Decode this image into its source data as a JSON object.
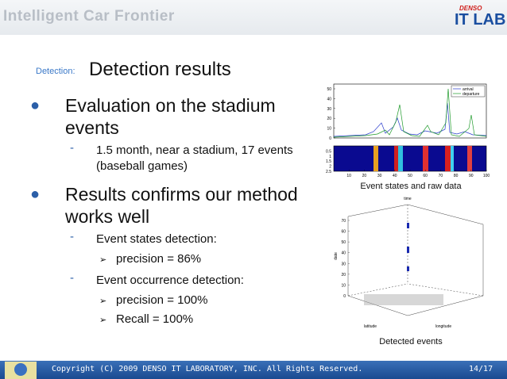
{
  "header": {
    "title": "Intelligent Car Frontier",
    "logo_brand": "DENSO",
    "logo_text": "IT LAB"
  },
  "slide": {
    "label": "Detection:",
    "title": "Detection results",
    "bullets": [
      {
        "text": "Evaluation on the stadium events",
        "sub": [
          {
            "text": "1.5 month, near a stadium, 17 events (baseball games)",
            "items": []
          }
        ]
      },
      {
        "text": "Results confirms our method works well",
        "sub": [
          {
            "text": "Event states detection:",
            "items": [
              "precision = 86%"
            ]
          },
          {
            "text": "Event occurrence detection:",
            "items": [
              "precision = 100%",
              "Recall = 100%"
            ]
          }
        ]
      }
    ]
  },
  "figures": [
    {
      "caption": "Event states and raw data",
      "legend": [
        "arrival",
        "departure"
      ],
      "yticks": [
        50,
        40,
        30,
        20,
        10,
        0
      ],
      "xticks": [
        10,
        20,
        30,
        40,
        50,
        60,
        70,
        80,
        90,
        100
      ],
      "y2ticks": [
        0.5,
        1,
        1.5,
        2,
        2.5
      ]
    },
    {
      "caption": "Detected events",
      "title": "time",
      "zlabel": "date",
      "xlabel": "latitude",
      "ylabel": "longitude",
      "zticks": [
        70,
        60,
        50,
        40,
        30,
        20,
        10,
        0
      ]
    }
  ],
  "footer": {
    "copyright": "Copyright (C) 2009 DENSO IT LABORATORY, INC. All Rights Reserved.",
    "page": "14/17"
  }
}
